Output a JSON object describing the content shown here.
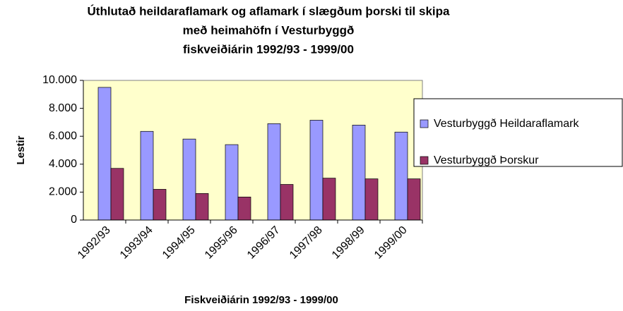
{
  "chart_data": {
    "type": "bar",
    "title": [
      "Úthlutað heildaraflamark og aflamark í slægðum þorski til skipa",
      "með heimahöfn í Vesturbyggð",
      "fiskveiðiárin 1992/93 - 1999/00"
    ],
    "x_label": "Fiskveiðiárin 1992/93 - 1999/00",
    "y_label": "Lestir",
    "categories": [
      "1992/93",
      "1993/94",
      "1994/95",
      "1995/96",
      "1996/97",
      "1997/98",
      "1998/99",
      "1999/00"
    ],
    "series": [
      {
        "name": "Vesturbyggð Heildaraflamark",
        "color": "#9999ff",
        "values": [
          9500,
          6350,
          5800,
          5400,
          6900,
          7150,
          6800,
          6300
        ]
      },
      {
        "name": "Vesturbyggð Þorskur",
        "color": "#993366",
        "values": [
          3700,
          2200,
          1900,
          1650,
          2550,
          3000,
          2950,
          2950
        ]
      }
    ],
    "ylim": [
      0,
      10000
    ],
    "yticks": [
      0,
      {
        "value": 2000,
        "label": "2.000"
      },
      {
        "value": 4000,
        "label": "4.000"
      },
      {
        "value": 6000,
        "label": "6.000"
      },
      {
        "value": 8000,
        "label": "8.000"
      },
      {
        "value": 10000,
        "label": "10.000"
      }
    ],
    "plot_background": "#ffffcc",
    "legend": "right"
  }
}
